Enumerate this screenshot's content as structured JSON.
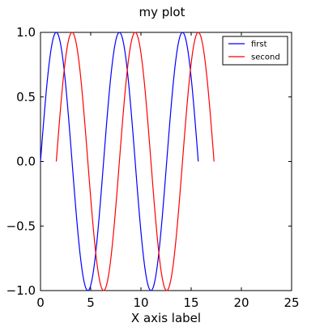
{
  "chart_data": {
    "type": "line",
    "title": "my plot",
    "xlabel": "X axis label",
    "ylabel": "",
    "xlim": [
      0,
      25
    ],
    "ylim": [
      -1.0,
      1.0
    ],
    "x_ticks": [
      0,
      5,
      10,
      15,
      20,
      25
    ],
    "y_ticks": [
      -1.0,
      -0.5,
      0.0,
      0.5,
      1.0
    ],
    "x_tick_labels": [
      "0",
      "5",
      "10",
      "15",
      "20",
      "25"
    ],
    "y_tick_labels": [
      "−1.0",
      "−0.5",
      "0.0",
      "0.5",
      "1.0"
    ],
    "grid": false,
    "legend_position": "top-right",
    "series": [
      {
        "name": "first",
        "color": "#0000ff",
        "x_range": [
          0.0,
          15.708
        ],
        "function": "sin(x)",
        "points": [
          [
            0.0,
            0.0
          ],
          [
            1.571,
            1.0
          ],
          [
            3.142,
            0.0
          ],
          [
            4.712,
            -1.0
          ],
          [
            6.283,
            0.0
          ],
          [
            7.854,
            1.0
          ],
          [
            9.425,
            0.0
          ],
          [
            10.996,
            -1.0
          ],
          [
            12.566,
            0.0
          ],
          [
            14.137,
            1.0
          ],
          [
            15.708,
            0.0
          ]
        ]
      },
      {
        "name": "second",
        "color": "#ff0000",
        "x_range": [
          1.571,
          17.279
        ],
        "function": "sin(x - 1.571)",
        "points": [
          [
            1.571,
            0.0
          ],
          [
            3.142,
            1.0
          ],
          [
            4.712,
            0.0
          ],
          [
            6.283,
            -1.0
          ],
          [
            7.854,
            0.0
          ],
          [
            9.425,
            1.0
          ],
          [
            10.996,
            0.0
          ],
          [
            12.566,
            -1.0
          ],
          [
            14.137,
            0.0
          ],
          [
            15.708,
            1.0
          ],
          [
            17.279,
            0.0
          ]
        ]
      }
    ]
  }
}
